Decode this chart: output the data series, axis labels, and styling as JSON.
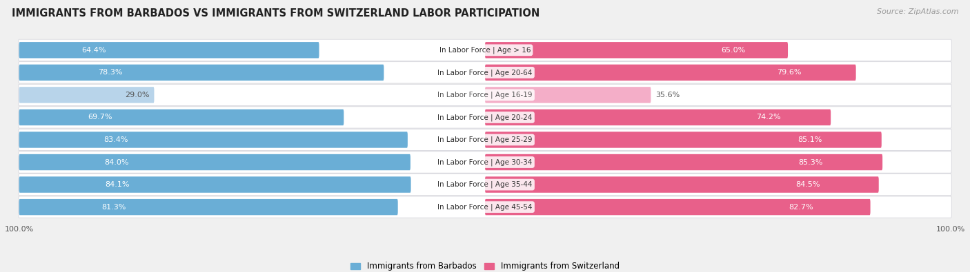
{
  "title": "IMMIGRANTS FROM BARBADOS VS IMMIGRANTS FROM SWITZERLAND LABOR PARTICIPATION",
  "source": "Source: ZipAtlas.com",
  "categories": [
    "In Labor Force | Age > 16",
    "In Labor Force | Age 20-64",
    "In Labor Force | Age 16-19",
    "In Labor Force | Age 20-24",
    "In Labor Force | Age 25-29",
    "In Labor Force | Age 30-34",
    "In Labor Force | Age 35-44",
    "In Labor Force | Age 45-54"
  ],
  "barbados_values": [
    64.4,
    78.3,
    29.0,
    69.7,
    83.4,
    84.0,
    84.1,
    81.3
  ],
  "switzerland_values": [
    65.0,
    79.6,
    35.6,
    74.2,
    85.1,
    85.3,
    84.5,
    82.7
  ],
  "barbados_color_dark": "#6aaed6",
  "barbados_color_light": "#b8d4ea",
  "switzerland_color_dark": "#e8608a",
  "switzerland_color_light": "#f4aec8",
  "label_barbados": "Immigrants from Barbados",
  "label_switzerland": "Immigrants from Switzerland",
  "bg_color": "#f0f0f0",
  "row_bg_color": "#ffffff",
  "row_outline_color": "#d0d0d8",
  "title_fontsize": 10.5,
  "source_fontsize": 8,
  "bar_label_fontsize": 8,
  "cat_label_fontsize": 7.5
}
